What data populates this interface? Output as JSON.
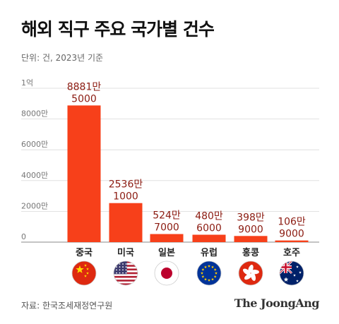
{
  "title": "해외 직구 주요 국가별 건수",
  "unit_note": "단위: 건, 2023년 기준",
  "source": "자료: 한국조세재정연구원",
  "brand": "The JoongAng",
  "colors": {
    "bar": "#f7401a",
    "label": "#8b1a10",
    "grid": "#d9d9d9",
    "axis": "#888888"
  },
  "chart_data": {
    "type": "bar",
    "title": "해외 직구 주요 국가별 건수",
    "xlabel": "",
    "ylabel": "",
    "ylim": [
      0,
      100000000
    ],
    "grid": true,
    "y_ticks": [
      {
        "value": 0,
        "label": "0"
      },
      {
        "value": 20000000,
        "label": "2000만"
      },
      {
        "value": 40000000,
        "label": "4000만"
      },
      {
        "value": 60000000,
        "label": "6000만"
      },
      {
        "value": 80000000,
        "label": "8000만"
      },
      {
        "value": 100000000,
        "label": "1억"
      }
    ],
    "categories": [
      "중국",
      "미국",
      "일본",
      "유럽",
      "홍콩",
      "호주"
    ],
    "values": [
      88815000,
      25361000,
      5247000,
      4806000,
      3989000,
      1069000
    ],
    "data_labels": [
      [
        "8881만",
        "5000"
      ],
      [
        "2536만",
        "1000"
      ],
      [
        "524만",
        "7000"
      ],
      [
        "480만",
        "6000"
      ],
      [
        "398만",
        "9000"
      ],
      [
        "106만",
        "9000"
      ]
    ],
    "flag_icons": [
      "china-flag-icon",
      "usa-flag-icon",
      "japan-flag-icon",
      "eu-flag-icon",
      "hongkong-flag-icon",
      "australia-flag-icon"
    ]
  }
}
